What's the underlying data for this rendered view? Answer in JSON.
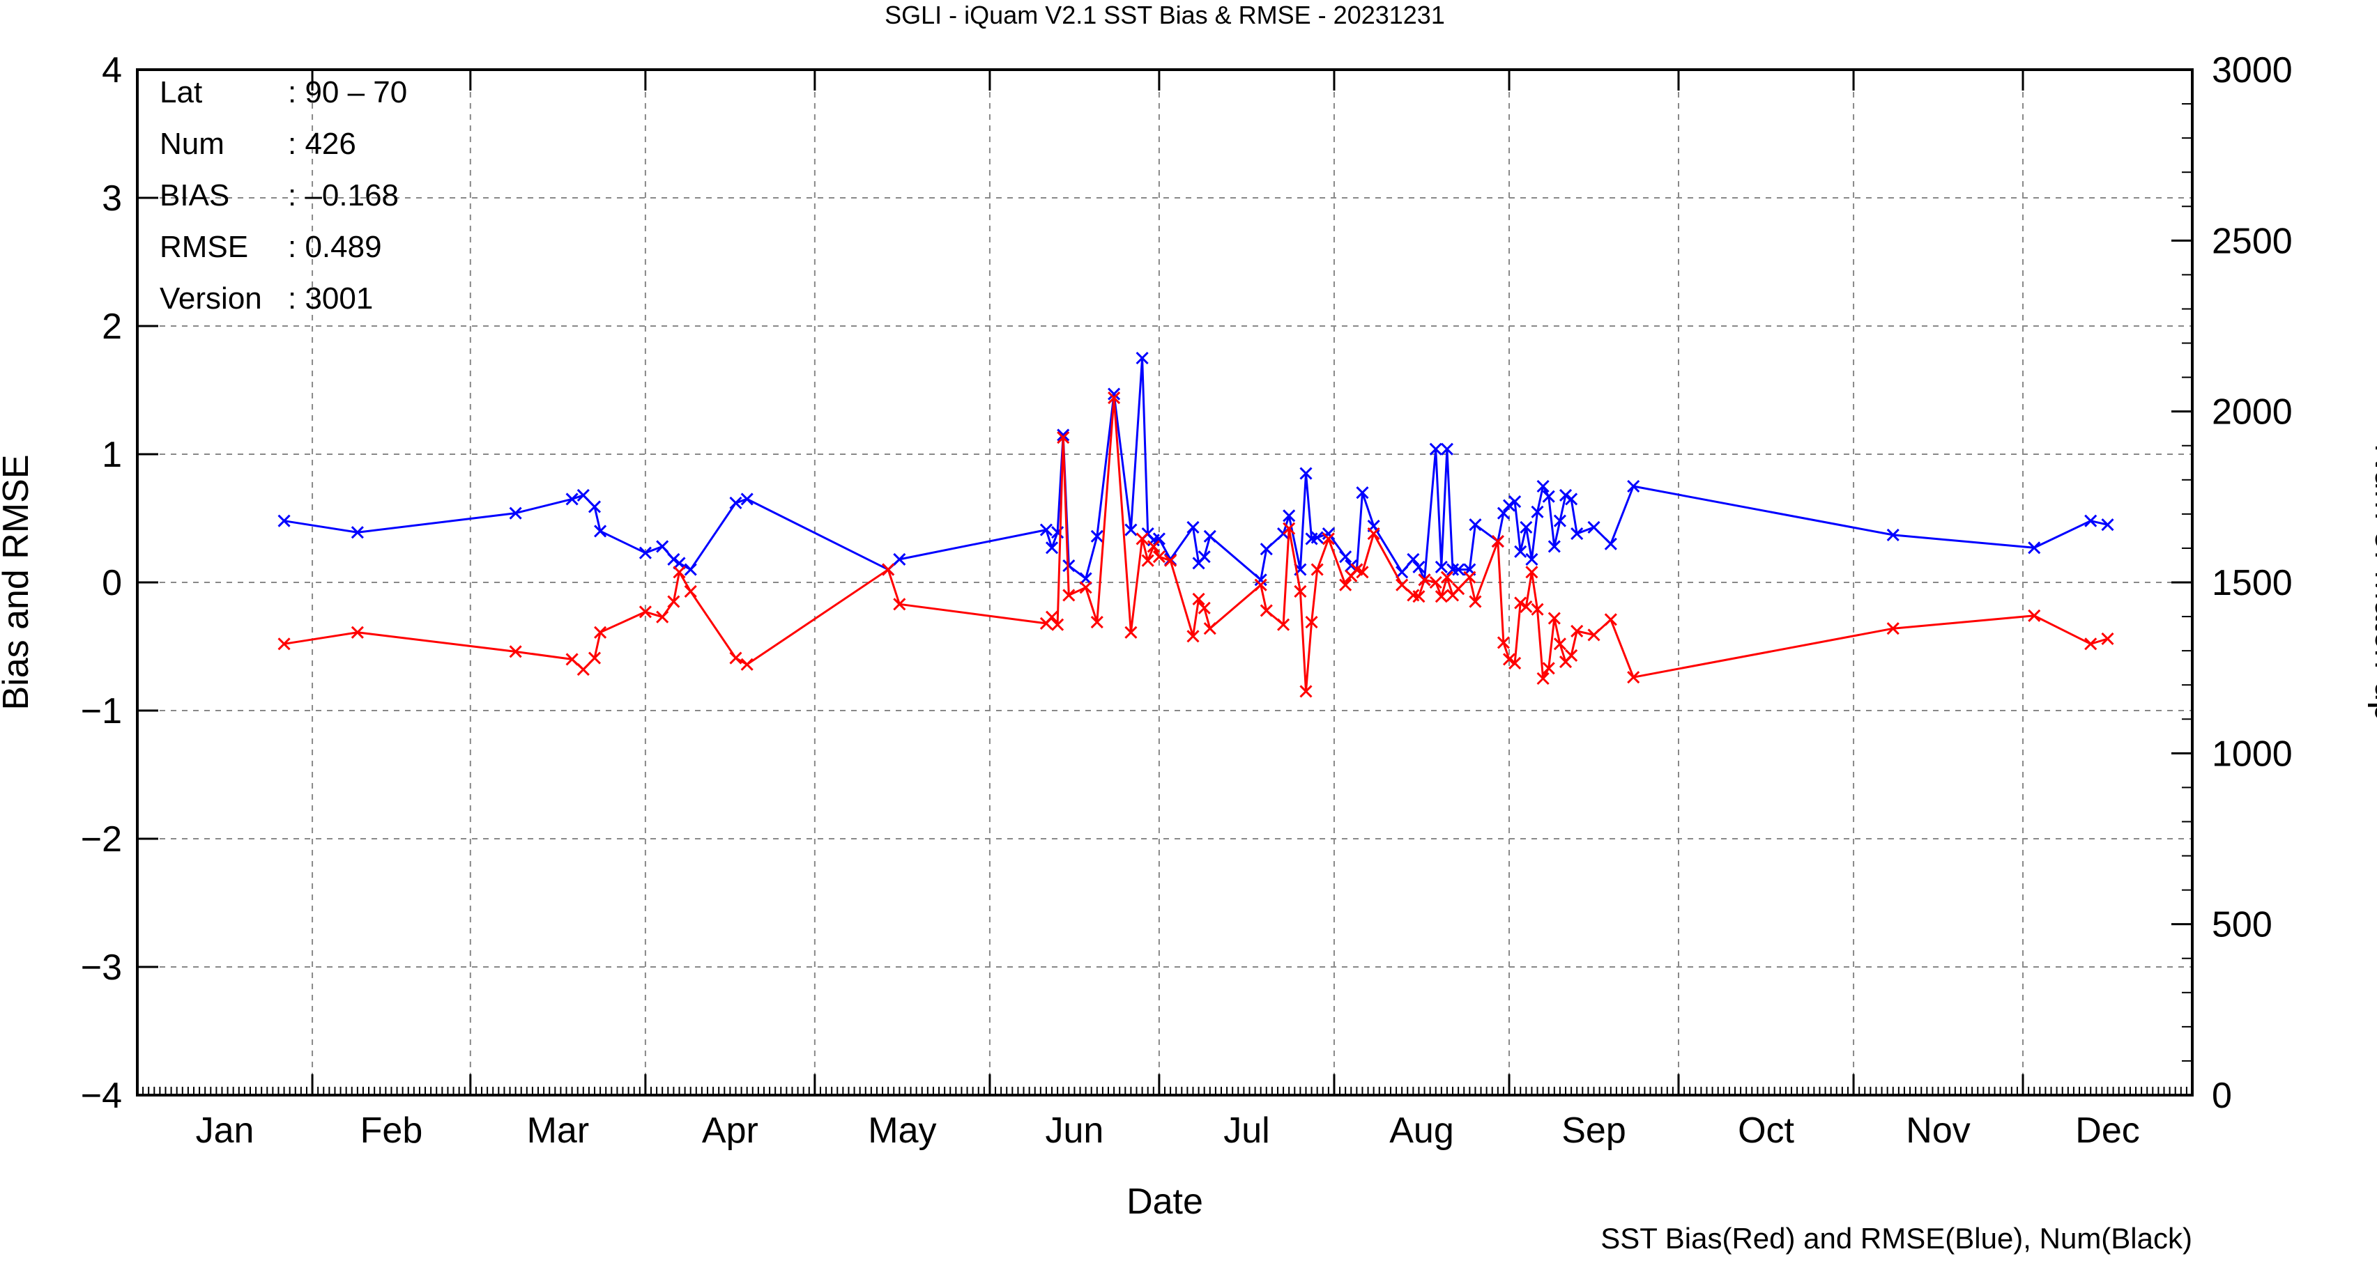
{
  "chart_data": {
    "type": "line",
    "title": "SGLI - iQuam V2.1 SST Bias & RMSE  - 20231231",
    "xlabel": "Date",
    "ylabel": "Bias and RMSE",
    "y2label": "Num of Match-up",
    "footer": "SST Bias(Red) and RMSE(Blue), Num(Black)",
    "ylim": [
      -4,
      4
    ],
    "y2lim": [
      0,
      3000
    ],
    "yticks": [
      "-4",
      "-3",
      "-2",
      "-1",
      "0",
      "1",
      "2",
      "3",
      "4"
    ],
    "y2ticks": [
      "0",
      "500",
      "1000",
      "1500",
      "2000",
      "2500",
      "3000"
    ],
    "xlim": [
      "2023-01-01",
      "2023-12-31"
    ],
    "months": [
      "Jan",
      "Feb",
      "Mar",
      "Apr",
      "May",
      "Jun",
      "Jul",
      "Aug",
      "Sep",
      "Oct",
      "Nov",
      "Dec"
    ],
    "grid": true,
    "info_box": {
      "rows": [
        {
          "label": "Lat",
          "value": ": 90 – 70"
        },
        {
          "label": "Num",
          "value": ": 426"
        },
        {
          "label": "BIAS",
          "value": ": –0.168"
        },
        {
          "label": "RMSE",
          "value": ": 0.489"
        },
        {
          "label": "Version",
          "value": ": 3001"
        }
      ]
    },
    "series": [
      {
        "name": "RMSE",
        "color": "#0000ff",
        "points": [
          [
            "2023-01-27",
            0.48
          ],
          [
            "2023-02-09",
            0.39
          ],
          [
            "2023-03-09",
            0.54
          ],
          [
            "2023-03-19",
            0.65
          ],
          [
            "2023-03-21",
            0.68
          ],
          [
            "2023-03-23",
            0.59
          ],
          [
            "2023-03-24",
            0.4
          ],
          [
            "2023-04-01",
            0.23
          ],
          [
            "2023-04-04",
            0.28
          ],
          [
            "2023-04-06",
            0.18
          ],
          [
            "2023-04-07",
            0.15
          ],
          [
            "2023-04-09",
            0.1
          ],
          [
            "2023-04-17",
            0.62
          ],
          [
            "2023-04-19",
            0.65
          ],
          [
            "2023-05-14",
            0.1
          ],
          [
            "2023-05-16",
            0.18
          ],
          [
            "2023-06-11",
            0.41
          ],
          [
            "2023-06-12",
            0.27
          ],
          [
            "2023-06-13",
            0.39
          ],
          [
            "2023-06-14",
            1.15
          ],
          [
            "2023-06-15",
            0.13
          ],
          [
            "2023-06-18",
            0.03
          ],
          [
            "2023-06-20",
            0.36
          ],
          [
            "2023-06-23",
            1.47
          ],
          [
            "2023-06-26",
            0.41
          ],
          [
            "2023-06-28",
            1.75
          ],
          [
            "2023-06-29",
            0.38
          ],
          [
            "2023-06-30",
            0.33
          ],
          [
            "2023-07-01",
            0.34
          ],
          [
            "2023-07-03",
            0.18
          ],
          [
            "2023-07-07",
            0.43
          ],
          [
            "2023-07-08",
            0.15
          ],
          [
            "2023-07-09",
            0.2
          ],
          [
            "2023-07-10",
            0.36
          ],
          [
            "2023-07-19",
            0.02
          ],
          [
            "2023-07-20",
            0.26
          ],
          [
            "2023-07-23",
            0.38
          ],
          [
            "2023-07-24",
            0.52
          ],
          [
            "2023-07-26",
            0.1
          ],
          [
            "2023-07-27",
            0.85
          ],
          [
            "2023-07-28",
            0.34
          ],
          [
            "2023-07-29",
            0.35
          ],
          [
            "2023-07-31",
            0.38
          ],
          [
            "2023-08-03",
            0.2
          ],
          [
            "2023-08-04",
            0.13
          ],
          [
            "2023-08-05",
            0.1
          ],
          [
            "2023-08-06",
            0.7
          ],
          [
            "2023-08-08",
            0.44
          ],
          [
            "2023-08-13",
            0.08
          ],
          [
            "2023-08-15",
            0.18
          ],
          [
            "2023-08-16",
            0.12
          ],
          [
            "2023-08-17",
            0.02
          ],
          [
            "2023-08-19",
            1.04
          ],
          [
            "2023-08-20",
            0.12
          ],
          [
            "2023-08-21",
            1.04
          ],
          [
            "2023-08-22",
            0.1
          ],
          [
            "2023-08-23",
            0.1
          ],
          [
            "2023-08-25",
            0.1
          ],
          [
            "2023-08-26",
            0.45
          ],
          [
            "2023-08-30",
            0.32
          ],
          [
            "2023-08-31",
            0.54
          ],
          [
            "2023-09-01",
            0.6
          ],
          [
            "2023-09-02",
            0.63
          ],
          [
            "2023-09-03",
            0.24
          ],
          [
            "2023-09-04",
            0.43
          ],
          [
            "2023-09-05",
            0.18
          ],
          [
            "2023-09-06",
            0.55
          ],
          [
            "2023-09-07",
            0.75
          ],
          [
            "2023-09-08",
            0.67
          ],
          [
            "2023-09-09",
            0.28
          ],
          [
            "2023-09-10",
            0.48
          ],
          [
            "2023-09-11",
            0.68
          ],
          [
            "2023-09-12",
            0.65
          ],
          [
            "2023-09-13",
            0.38
          ],
          [
            "2023-09-16",
            0.43
          ],
          [
            "2023-09-19",
            0.3
          ],
          [
            "2023-09-23",
            0.75
          ],
          [
            "2023-11-08",
            0.37
          ],
          [
            "2023-12-03",
            0.27
          ],
          [
            "2023-12-13",
            0.48
          ],
          [
            "2023-12-16",
            0.45
          ]
        ]
      },
      {
        "name": "Bias",
        "color": "#ff0000",
        "points": [
          [
            "2023-01-27",
            -0.48
          ],
          [
            "2023-02-09",
            -0.39
          ],
          [
            "2023-03-09",
            -0.54
          ],
          [
            "2023-03-19",
            -0.6
          ],
          [
            "2023-03-21",
            -0.68
          ],
          [
            "2023-03-23",
            -0.59
          ],
          [
            "2023-03-24",
            -0.39
          ],
          [
            "2023-04-01",
            -0.23
          ],
          [
            "2023-04-04",
            -0.27
          ],
          [
            "2023-04-06",
            -0.15
          ],
          [
            "2023-04-07",
            0.08
          ],
          [
            "2023-04-09",
            -0.07
          ],
          [
            "2023-04-17",
            -0.59
          ],
          [
            "2023-04-19",
            -0.64
          ],
          [
            "2023-05-14",
            0.1
          ],
          [
            "2023-05-16",
            -0.17
          ],
          [
            "2023-06-11",
            -0.32
          ],
          [
            "2023-06-12",
            -0.27
          ],
          [
            "2023-06-13",
            -0.33
          ],
          [
            "2023-06-14",
            1.13
          ],
          [
            "2023-06-15",
            -0.1
          ],
          [
            "2023-06-18",
            -0.04
          ],
          [
            "2023-06-20",
            -0.31
          ],
          [
            "2023-06-23",
            1.44
          ],
          [
            "2023-06-26",
            -0.39
          ],
          [
            "2023-06-28",
            0.34
          ],
          [
            "2023-06-29",
            0.17
          ],
          [
            "2023-06-30",
            0.28
          ],
          [
            "2023-07-01",
            0.2
          ],
          [
            "2023-07-03",
            0.17
          ],
          [
            "2023-07-07",
            -0.42
          ],
          [
            "2023-07-08",
            -0.13
          ],
          [
            "2023-07-09",
            -0.2
          ],
          [
            "2023-07-10",
            -0.36
          ],
          [
            "2023-07-19",
            -0.02
          ],
          [
            "2023-07-20",
            -0.22
          ],
          [
            "2023-07-23",
            -0.33
          ],
          [
            "2023-07-24",
            0.42
          ],
          [
            "2023-07-26",
            -0.07
          ],
          [
            "2023-07-27",
            -0.85
          ],
          [
            "2023-07-28",
            -0.31
          ],
          [
            "2023-07-29",
            0.1
          ],
          [
            "2023-07-31",
            0.34
          ],
          [
            "2023-08-03",
            -0.02
          ],
          [
            "2023-08-04",
            0.05
          ],
          [
            "2023-08-05",
            0.1
          ],
          [
            "2023-08-06",
            0.08
          ],
          [
            "2023-08-08",
            0.38
          ],
          [
            "2023-08-13",
            -0.02
          ],
          [
            "2023-08-15",
            -0.1
          ],
          [
            "2023-08-16",
            -0.11
          ],
          [
            "2023-08-17",
            0.02
          ],
          [
            "2023-08-19",
            0.0
          ],
          [
            "2023-08-20",
            -0.11
          ],
          [
            "2023-08-21",
            0.04
          ],
          [
            "2023-08-22",
            -0.1
          ],
          [
            "2023-08-23",
            -0.05
          ],
          [
            "2023-08-25",
            0.04
          ],
          [
            "2023-08-26",
            -0.15
          ],
          [
            "2023-08-30",
            0.32
          ],
          [
            "2023-08-31",
            -0.47
          ],
          [
            "2023-09-01",
            -0.6
          ],
          [
            "2023-09-02",
            -0.63
          ],
          [
            "2023-09-03",
            -0.16
          ],
          [
            "2023-09-04",
            -0.19
          ],
          [
            "2023-09-05",
            0.08
          ],
          [
            "2023-09-06",
            -0.21
          ],
          [
            "2023-09-07",
            -0.75
          ],
          [
            "2023-09-08",
            -0.67
          ],
          [
            "2023-09-09",
            -0.28
          ],
          [
            "2023-09-10",
            -0.48
          ],
          [
            "2023-09-11",
            -0.62
          ],
          [
            "2023-09-12",
            -0.57
          ],
          [
            "2023-09-13",
            -0.38
          ],
          [
            "2023-09-16",
            -0.41
          ],
          [
            "2023-09-19",
            -0.29
          ],
          [
            "2023-09-23",
            -0.74
          ],
          [
            "2023-11-08",
            -0.36
          ],
          [
            "2023-12-03",
            -0.26
          ],
          [
            "2023-12-13",
            -0.48
          ],
          [
            "2023-12-16",
            -0.44
          ]
        ]
      }
    ]
  }
}
